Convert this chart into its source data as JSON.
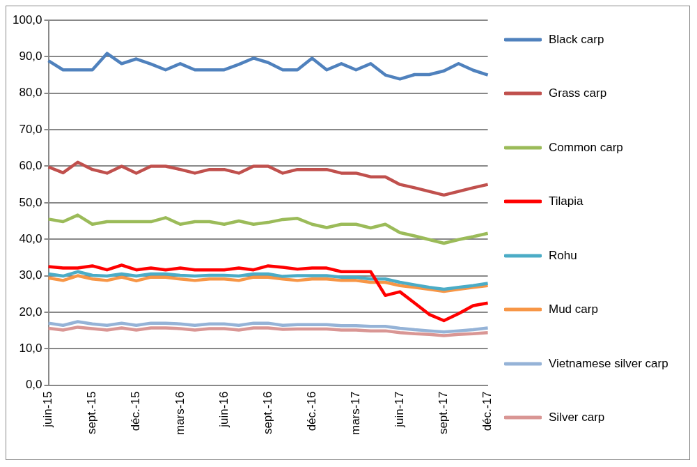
{
  "chart_data": {
    "type": "line",
    "categories": [
      "juin-15",
      null,
      null,
      "sept.-15",
      null,
      null,
      "déc.-15",
      null,
      null,
      "mars-16",
      null,
      null,
      "juin-16",
      null,
      null,
      "sept.-16",
      null,
      null,
      "déc.-16",
      null,
      null,
      "mars-17",
      null,
      null,
      "juin-17",
      null,
      null,
      "sept.-17",
      null,
      null,
      "déc.-17"
    ],
    "ylim": [
      0,
      100
    ],
    "yticks": [
      {
        "value": 0,
        "label": "0,0"
      },
      {
        "value": 10,
        "label": "10,0"
      },
      {
        "value": 20,
        "label": "20,0"
      },
      {
        "value": 30,
        "label": "30,0"
      },
      {
        "value": 40,
        "label": "40,0"
      },
      {
        "value": 50,
        "label": "50,0"
      },
      {
        "value": 60,
        "label": "60,0"
      },
      {
        "value": 70,
        "label": "70,0"
      },
      {
        "value": 80,
        "label": "80,0"
      },
      {
        "value": 90,
        "label": "90,0"
      },
      {
        "value": 100,
        "label": "100,0"
      }
    ],
    "grid": "y",
    "legend": "right",
    "marker": "none",
    "line_style": "solid",
    "series": [
      {
        "name": "Black carp",
        "color": "#4f81bd",
        "values": [
          88.9,
          86.4,
          86.4,
          86.4,
          90.9,
          88.1,
          89.4,
          88.0,
          86.4,
          88.1,
          86.4,
          86.4,
          86.4,
          87.9,
          89.6,
          88.4,
          86.4,
          86.4,
          89.6,
          86.4,
          88.1,
          86.4,
          88.1,
          85.0,
          83.9,
          85.1,
          85.1,
          86.1,
          88.1,
          86.3,
          85.0
        ]
      },
      {
        "name": "Grass carp",
        "color": "#c0504d",
        "values": [
          59.8,
          58.2,
          61.1,
          59.1,
          58.1,
          60,
          58.1,
          60,
          60,
          59.1,
          58.1,
          59.1,
          59.1,
          58.1,
          60,
          60,
          58.1,
          59.1,
          59.1,
          59.1,
          58.1,
          58.1,
          57.1,
          57.1,
          55,
          54.1,
          53.1,
          52.1,
          53.1,
          54.1,
          55
        ]
      },
      {
        "name": "Common carp",
        "color": "#9bbb59",
        "values": [
          45.5,
          44.8,
          46.6,
          44.1,
          44.8,
          44.8,
          44.8,
          44.8,
          45.9,
          44.1,
          44.8,
          44.8,
          44.1,
          45,
          44.1,
          44.6,
          45.4,
          45.7,
          44.1,
          43.2,
          44.1,
          44.1,
          43.1,
          44.1,
          41.8,
          40.9,
          39.9,
          38.9,
          39.9,
          40.7,
          41.6
        ]
      },
      {
        "name": "Tilapia",
        "color": "#ff0000",
        "values": [
          32.5,
          32.1,
          32.1,
          32.7,
          31.6,
          32.9,
          31.6,
          32.1,
          31.6,
          32.1,
          31.6,
          31.6,
          31.6,
          32.1,
          31.6,
          32.7,
          32.3,
          31.8,
          32.1,
          32.1,
          31.1,
          31.1,
          31.1,
          24.6,
          25.6,
          22.5,
          19.4,
          17.7,
          19.6,
          21.8,
          22.5
        ]
      },
      {
        "name": "Rohu",
        "color": "#4bacc6",
        "values": [
          30.5,
          29.9,
          31.1,
          30.1,
          29.9,
          30.5,
          29.9,
          30.5,
          30.5,
          30.1,
          29.9,
          30.1,
          30.1,
          29.9,
          30.5,
          30.5,
          29.8,
          30.0,
          30.0,
          30.0,
          29.6,
          29.6,
          29.1,
          29.1,
          28.2,
          27.5,
          26.8,
          26.3,
          26.8,
          27.3,
          27.9
        ]
      },
      {
        "name": "Mud carp",
        "color": "#f79646",
        "values": [
          29.4,
          28.7,
          30,
          29.1,
          28.7,
          29.6,
          28.6,
          29.6,
          29.6,
          29.1,
          28.7,
          29.1,
          29.1,
          28.7,
          29.6,
          29.6,
          29.1,
          28.7,
          29.1,
          29.1,
          28.7,
          28.7,
          28.2,
          28.2,
          27.3,
          26.8,
          26.3,
          25.7,
          26.3,
          26.8,
          27.3
        ]
      },
      {
        "name": "Vietnamese silver carp",
        "color": "#95b3d7",
        "values": [
          17.0,
          16.4,
          17.4,
          16.8,
          16.4,
          17.0,
          16.4,
          17.0,
          17.0,
          16.8,
          16.4,
          16.8,
          16.8,
          16.4,
          17.0,
          17.0,
          16.4,
          16.6,
          16.6,
          16.6,
          16.3,
          16.3,
          16.1,
          16.1,
          15.6,
          15.2,
          14.9,
          14.6,
          14.9,
          15.2,
          15.7
        ]
      },
      {
        "name": "Silver carp",
        "color": "#d99694",
        "values": [
          15.6,
          15.1,
          15.9,
          15.5,
          15.1,
          15.7,
          15.1,
          15.7,
          15.7,
          15.5,
          15.1,
          15.5,
          15.5,
          15.1,
          15.7,
          15.7,
          15.3,
          15.4,
          15.4,
          15.4,
          15.1,
          15.1,
          14.9,
          14.9,
          14.4,
          14.1,
          13.9,
          13.6,
          13.9,
          14.1,
          14.4
        ]
      }
    ]
  }
}
